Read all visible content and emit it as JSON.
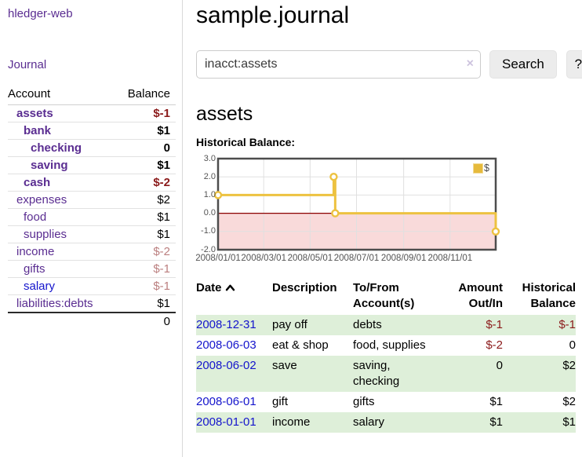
{
  "app": {
    "brand": "hledger-web",
    "nav": {
      "journal_label": "Journal"
    }
  },
  "colors": {
    "link_purple": "#5a2d91",
    "link_blue": "#1414cc",
    "negative_strong": "#8b1a1a",
    "negative_soft": "#bb7f7f",
    "row_stripe_green": "#deefd9",
    "series_gold": "#edc240"
  },
  "sidebar": {
    "columns": {
      "account": "Account",
      "balance": "Balance"
    },
    "accounts": [
      {
        "name": "assets",
        "balance": "$-1",
        "depth": 0,
        "inacct": true,
        "negative": true,
        "link_state": "visited"
      },
      {
        "name": "bank",
        "balance": "$1",
        "depth": 1,
        "inacct": true,
        "negative": false,
        "link_state": "visited"
      },
      {
        "name": "checking",
        "balance": "0",
        "depth": 2,
        "inacct": true,
        "negative": false,
        "link_state": "visited"
      },
      {
        "name": "saving",
        "balance": "$1",
        "depth": 2,
        "inacct": true,
        "negative": false,
        "link_state": "visited"
      },
      {
        "name": "cash",
        "balance": "$-2",
        "depth": 1,
        "inacct": true,
        "negative": true,
        "link_state": "visited"
      },
      {
        "name": "expenses",
        "balance": "$2",
        "depth": 0,
        "inacct": false,
        "negative": false,
        "link_state": "visited"
      },
      {
        "name": "food",
        "balance": "$1",
        "depth": 1,
        "inacct": false,
        "negative": false,
        "link_state": "visited"
      },
      {
        "name": "supplies",
        "balance": "$1",
        "depth": 1,
        "inacct": false,
        "negative": false,
        "link_state": "visited"
      },
      {
        "name": "income",
        "balance": "$-2",
        "depth": 0,
        "inacct": false,
        "negative": true,
        "link_state": "visited"
      },
      {
        "name": "gifts",
        "balance": "$-1",
        "depth": 1,
        "inacct": false,
        "negative": true,
        "link_state": "visited"
      },
      {
        "name": "salary",
        "balance": "$-1",
        "depth": 1,
        "inacct": false,
        "negative": true,
        "link_state": "unvisited"
      },
      {
        "name": "liabilities:debts",
        "balance": "$1",
        "depth": 0,
        "inacct": false,
        "negative": false,
        "link_state": "visited"
      }
    ],
    "total": "0"
  },
  "header": {
    "title": "sample.journal"
  },
  "search": {
    "value": "inacct:assets",
    "clear_icon": "×",
    "button_label": "Search",
    "help_label": "?"
  },
  "account_page": {
    "title": "assets",
    "chart_label": "Historical Balance:"
  },
  "chart_data": {
    "type": "line",
    "style": "steps",
    "title": "Historical Balance:",
    "series": [
      {
        "name": "$",
        "color": "#edc240",
        "points": [
          [
            "2008-01-01",
            1
          ],
          [
            "2008-06-01",
            2
          ],
          [
            "2008-06-03",
            0
          ],
          [
            "2008-12-31",
            -1
          ]
        ]
      }
    ],
    "xlim": [
      "2008-01-01",
      "2008-12-31"
    ],
    "ylim": [
      -2,
      3
    ],
    "yticks": [
      {
        "label": "3.0",
        "value": 3
      },
      {
        "label": "2.0",
        "value": 2
      },
      {
        "label": "1.0",
        "value": 1
      },
      {
        "label": "0.0",
        "value": 0
      },
      {
        "label": "-1.0",
        "value": -1
      },
      {
        "label": "-2.0",
        "value": -2
      }
    ],
    "xticks": [
      {
        "label": "2008/01/01",
        "date": "2008-01-01"
      },
      {
        "label": "2008/03/01",
        "date": "2008-03-01"
      },
      {
        "label": "2008/05/01",
        "date": "2008-05-01"
      },
      {
        "label": "2008/07/01",
        "date": "2008-07-01"
      },
      {
        "label": "2008/09/01",
        "date": "2008-09-01"
      },
      {
        "label": "2008/11/01",
        "date": "2008-11-01"
      }
    ],
    "grid": true,
    "zero_line_color": "#8b0000",
    "negative_region_color": "#f9dada",
    "legend": {
      "position": "top-right",
      "entries": [
        {
          "label": "$",
          "color": "#e6ba3c"
        }
      ]
    }
  },
  "register": {
    "columns": {
      "date": "Date",
      "sort_icon": "chevron-up",
      "description": "Description",
      "accounts": "To/From Account(s)",
      "amount": "Amount Out/In",
      "balance": "Historical Balance"
    },
    "rows": [
      {
        "date": "2008-12-31",
        "description": "pay off",
        "accounts": "debts",
        "amount": "$-1",
        "balance": "$-1"
      },
      {
        "date": "2008-06-03",
        "description": "eat & shop",
        "accounts": "food, supplies",
        "amount": "$-2",
        "balance": "0"
      },
      {
        "date": "2008-06-02",
        "description": "save",
        "accounts": "saving, checking",
        "amount": "0",
        "balance": "$2"
      },
      {
        "date": "2008-06-01",
        "description": "gift",
        "accounts": "gifts",
        "amount": "$1",
        "balance": "$2"
      },
      {
        "date": "2008-01-01",
        "description": "income",
        "accounts": "salary",
        "amount": "$1",
        "balance": "$1"
      }
    ]
  }
}
